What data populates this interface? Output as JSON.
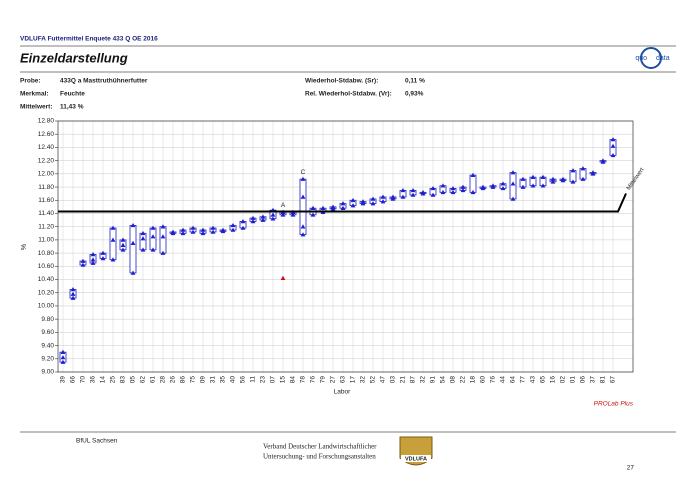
{
  "header": {
    "report": "VDLUFA Futtermittel Enquete 433 Q OE 2016",
    "title": "Einzeldarstellung",
    "logo": [
      "quo",
      "data"
    ]
  },
  "info": {
    "probe_label": "Probe:",
    "probe": "433Q a Masttruthühnerfutter",
    "merkmal_label": "Merkmal:",
    "merkmal": "Feuchte",
    "mittelwert_label": "Mittelwert:",
    "mittelwert": "11,43 %",
    "sr_label": "Wiederhol-Stdabw. (Sr):",
    "sr": "0,11 %",
    "vr_label": "Rel. Wiederhol-Stdabw. (Vr):",
    "vr": "0,93%"
  },
  "chart_data": {
    "type": "replicate-box",
    "y_label": "%",
    "x_label": "Labor",
    "software": "PROLab Plus",
    "categories": [
      "39",
      "66",
      "70",
      "36",
      "14",
      "25",
      "83",
      "05",
      "62",
      "61",
      "28",
      "26",
      "86",
      "75",
      "09",
      "31",
      "35",
      "40",
      "56",
      "11",
      "23",
      "07",
      "15",
      "84",
      "78",
      "76",
      "79",
      "27",
      "63",
      "17",
      "32",
      "52",
      "47",
      "03",
      "21",
      "87",
      "32",
      "91",
      "54",
      "08",
      "22",
      "18",
      "60",
      "76",
      "44",
      "64",
      "77",
      "43",
      "65",
      "16",
      "02",
      "01",
      "06",
      "37",
      "81",
      "67"
    ],
    "replicates": [
      [
        9.3,
        9.22,
        9.15
      ],
      [
        10.25,
        10.18,
        10.12
      ],
      [
        10.68,
        10.62
      ],
      [
        10.78,
        10.7,
        10.65
      ],
      [
        10.8,
        10.72
      ],
      [
        11.18,
        11.0,
        10.7
      ],
      [
        11.0,
        10.92,
        10.85
      ],
      [
        11.22,
        10.95,
        10.5
      ],
      [
        11.1,
        11.02,
        10.85
      ],
      [
        11.18,
        11.05,
        10.85
      ],
      [
        11.2,
        11.05,
        10.8
      ],
      [
        11.12,
        11.1
      ],
      [
        11.15,
        11.1
      ],
      [
        11.18,
        11.12
      ],
      [
        11.15,
        11.1
      ],
      [
        11.18,
        11.12
      ],
      [
        11.15,
        11.13
      ],
      [
        11.22,
        11.15
      ],
      [
        11.28,
        11.18
      ],
      [
        11.33,
        11.28
      ],
      [
        11.35,
        11.3
      ],
      [
        11.45,
        11.38,
        11.32
      ],
      [
        11.42,
        11.38
      ],
      [
        11.42,
        11.38
      ],
      [
        11.92,
        11.65,
        11.2,
        11.08
      ],
      [
        11.48,
        11.38
      ],
      [
        11.48,
        11.42
      ],
      [
        11.5,
        11.47
      ],
      [
        11.55,
        11.48
      ],
      [
        11.6,
        11.52
      ],
      [
        11.58,
        11.55
      ],
      [
        11.62,
        11.55
      ],
      [
        11.65,
        11.58
      ],
      [
        11.65,
        11.62
      ],
      [
        11.75,
        11.65
      ],
      [
        11.75,
        11.68
      ],
      [
        11.72,
        11.7
      ],
      [
        11.78,
        11.68
      ],
      [
        11.82,
        11.72
      ],
      [
        11.78,
        11.72
      ],
      [
        11.8,
        11.75
      ],
      [
        11.98,
        11.72
      ],
      [
        11.8,
        11.78
      ],
      [
        11.82,
        11.8
      ],
      [
        11.85,
        11.78
      ],
      [
        12.02,
        11.85,
        11.62
      ],
      [
        11.92,
        11.8
      ],
      [
        11.95,
        11.82
      ],
      [
        11.95,
        11.82
      ],
      [
        11.92,
        11.88
      ],
      [
        11.92,
        11.9
      ],
      [
        12.05,
        11.88
      ],
      [
        12.08,
        11.92
      ],
      [
        12.02,
        12.0
      ],
      [
        12.2,
        12.18
      ],
      [
        12.52,
        12.42,
        12.28
      ]
    ],
    "outliers": [
      [],
      [],
      [],
      [],
      [],
      [],
      [],
      [],
      [],
      [],
      [],
      [],
      [],
      [],
      [],
      [],
      [],
      [],
      [],
      [],
      [],
      [],
      [
        10.42
      ],
      [],
      [],
      [],
      [],
      [],
      [],
      [],
      [],
      [],
      [],
      [],
      [],
      [],
      [],
      [],
      [],
      [],
      [],
      [],
      [],
      [],
      [],
      [],
      [],
      [],
      [],
      [],
      [],
      [],
      [],
      [],
      [],
      []
    ],
    "flags": [
      null,
      null,
      null,
      null,
      null,
      null,
      null,
      null,
      null,
      null,
      null,
      null,
      null,
      null,
      null,
      null,
      null,
      null,
      null,
      null,
      null,
      null,
      "A",
      null,
      "C",
      null,
      null,
      null,
      null,
      null,
      null,
      null,
      null,
      null,
      null,
      null,
      null,
      null,
      null,
      null,
      null,
      null,
      null,
      null,
      null,
      null,
      null,
      null,
      null,
      null,
      null,
      null,
      null,
      null,
      null,
      null
    ],
    "color": "#1f1fc8",
    "outlier_color": "#cc1010",
    "mean": 11.43,
    "mean_label": "Mittelwert",
    "ylim": [
      9.0,
      12.8
    ],
    "yticks": [
      {
        "value": 9.0,
        "label": "9.00"
      },
      {
        "value": 9.2,
        "label": "9.20"
      },
      {
        "value": 9.4,
        "label": "9.40"
      },
      {
        "value": 9.6,
        "label": "9.60"
      },
      {
        "value": 9.8,
        "label": "9.80"
      },
      {
        "value": 10.0,
        "label": "10.00"
      },
      {
        "value": 10.2,
        "label": "10.20"
      },
      {
        "value": 10.4,
        "label": "10.40"
      },
      {
        "value": 10.6,
        "label": "10.60"
      },
      {
        "value": 10.8,
        "label": "10.80"
      },
      {
        "value": 11.0,
        "label": "11.00"
      },
      {
        "value": 11.2,
        "label": "11.20"
      },
      {
        "value": 11.4,
        "label": "11.40"
      },
      {
        "value": 11.6,
        "label": "11.60"
      },
      {
        "value": 11.8,
        "label": "11.80"
      },
      {
        "value": 12.0,
        "label": "12.00"
      },
      {
        "value": 12.2,
        "label": "12.20"
      },
      {
        "value": 12.4,
        "label": "12.40"
      },
      {
        "value": 12.6,
        "label": "12.60"
      },
      {
        "value": 12.8,
        "label": "12.80"
      }
    ],
    "grid": true
  },
  "footer": {
    "left": "BfUL Sachsen",
    "org_line1": "Verband Deutscher Landwirtschaftlicher",
    "org_line2": "Untersuchung- und Forschungsanstalten",
    "logo": "VDLUFA",
    "page": "27"
  }
}
